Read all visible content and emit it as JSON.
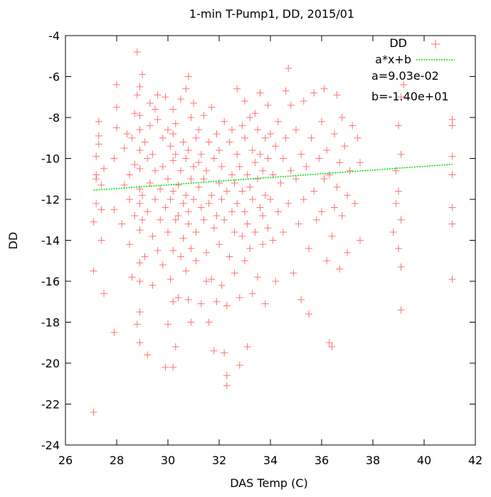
{
  "chart_data": {
    "type": "scatter",
    "title": "1-min T-Pump1, DD, 2015/01",
    "xlabel": "DAS Temp (C)",
    "ylabel": "DD",
    "xlim": [
      26,
      42
    ],
    "ylim": [
      -24,
      -4
    ],
    "xticks": [
      "26",
      "28",
      "30",
      "32",
      "34",
      "36",
      "38",
      "40",
      "42"
    ],
    "yticks": [
      "-24",
      "-22",
      "-20",
      "-18",
      "-16",
      "-14",
      "-12",
      "-10",
      "-8",
      "-6",
      "-4"
    ],
    "grid": false,
    "legend_position": "top-right",
    "series": [
      {
        "name": "DD",
        "marker": "plus",
        "color": "#ff0000",
        "points": [
          [
            27.1,
            -22.4
          ],
          [
            27.1,
            -15.5
          ],
          [
            27.1,
            -13.1
          ],
          [
            27.2,
            -12.2
          ],
          [
            27.2,
            -11.0
          ],
          [
            27.2,
            -10.8
          ],
          [
            27.2,
            -9.9
          ],
          [
            27.3,
            -9.3
          ],
          [
            27.3,
            -8.9
          ],
          [
            27.3,
            -8.2
          ],
          [
            27.4,
            -11.3
          ],
          [
            27.4,
            -12.5
          ],
          [
            27.4,
            -14.0
          ],
          [
            27.5,
            -16.6
          ],
          [
            27.5,
            -10.5
          ],
          [
            27.9,
            -18.5
          ],
          [
            27.9,
            -12.5
          ],
          [
            27.9,
            -10.0
          ],
          [
            28.0,
            -8.5
          ],
          [
            28.0,
            -7.5
          ],
          [
            28.0,
            -6.4
          ],
          [
            28.2,
            -13.2
          ],
          [
            28.3,
            -11.3
          ],
          [
            28.3,
            -9.5
          ],
          [
            28.4,
            -8.8
          ],
          [
            28.5,
            -10.8
          ],
          [
            28.5,
            -12.0
          ],
          [
            28.5,
            -14.2
          ],
          [
            28.6,
            -15.8
          ],
          [
            28.6,
            -9.0
          ],
          [
            28.7,
            -10.3
          ],
          [
            28.7,
            -12.8
          ],
          [
            28.7,
            -7.8
          ],
          [
            28.8,
            -18.1
          ],
          [
            28.8,
            -6.9
          ],
          [
            28.8,
            -4.8
          ],
          [
            28.9,
            -19.0
          ],
          [
            28.9,
            -17.5
          ],
          [
            28.9,
            -16.0
          ],
          [
            28.9,
            -15.1
          ],
          [
            28.9,
            -13.5
          ],
          [
            28.9,
            -12.2
          ],
          [
            28.9,
            -11.5
          ],
          [
            28.9,
            -10.5
          ],
          [
            28.9,
            -9.6
          ],
          [
            28.9,
            -8.6
          ],
          [
            28.9,
            -7.9
          ],
          [
            28.9,
            -6.5
          ],
          [
            29.0,
            -5.9
          ],
          [
            29.0,
            -11.8
          ],
          [
            29.0,
            -13.0
          ],
          [
            29.1,
            -14.8
          ],
          [
            29.1,
            -9.2
          ],
          [
            29.2,
            -10.0
          ],
          [
            29.2,
            -19.6
          ],
          [
            29.2,
            -12.6
          ],
          [
            29.3,
            -8.4
          ],
          [
            29.3,
            -11.2
          ],
          [
            29.3,
            -7.3
          ],
          [
            29.4,
            -13.8
          ],
          [
            29.4,
            -16.2
          ],
          [
            29.4,
            -9.8
          ],
          [
            29.5,
            -12.0
          ],
          [
            29.5,
            -10.6
          ],
          [
            29.5,
            -7.6
          ],
          [
            29.6,
            -8.1
          ],
          [
            29.6,
            -14.5
          ],
          [
            29.6,
            -6.9
          ],
          [
            29.7,
            -11.5
          ],
          [
            29.7,
            -13.0
          ],
          [
            29.8,
            -15.2
          ],
          [
            29.8,
            -9.0
          ],
          [
            29.8,
            -10.4
          ],
          [
            29.9,
            -12.4
          ],
          [
            29.9,
            -20.2
          ],
          [
            29.9,
            -7.0
          ],
          [
            30.0,
            -8.6
          ],
          [
            30.0,
            -11.0
          ],
          [
            30.0,
            -18.1
          ],
          [
            30.0,
            -13.6
          ],
          [
            30.1,
            -9.4
          ],
          [
            30.1,
            -15.9
          ],
          [
            30.1,
            -12.0
          ],
          [
            30.2,
            -20.2
          ],
          [
            30.2,
            -17.0
          ],
          [
            30.2,
            -14.5
          ],
          [
            30.2,
            -11.6
          ],
          [
            30.2,
            -10.1
          ],
          [
            30.2,
            -8.8
          ],
          [
            30.2,
            -7.6
          ],
          [
            30.3,
            -19.2
          ],
          [
            30.3,
            -13.0
          ],
          [
            30.3,
            -9.8
          ],
          [
            30.3,
            -8.3
          ],
          [
            30.4,
            -16.8
          ],
          [
            30.4,
            -11.3
          ],
          [
            30.4,
            -12.8
          ],
          [
            30.5,
            -10.6
          ],
          [
            30.5,
            -14.8
          ],
          [
            30.5,
            -7.1
          ],
          [
            30.6,
            -12.2
          ],
          [
            30.6,
            -9.2
          ],
          [
            30.6,
            -13.9
          ],
          [
            30.7,
            -11.8
          ],
          [
            30.7,
            -10.0
          ],
          [
            30.7,
            -15.5
          ],
          [
            30.7,
            -6.6
          ],
          [
            30.8,
            -16.9
          ],
          [
            30.8,
            -13.2
          ],
          [
            30.8,
            -9.6
          ],
          [
            30.8,
            -6.0
          ],
          [
            30.8,
            -12.6
          ],
          [
            30.9,
            -11.0
          ],
          [
            30.9,
            -14.4
          ],
          [
            30.9,
            -8.0
          ],
          [
            30.9,
            -18.0
          ],
          [
            31.0,
            -10.4
          ],
          [
            31.0,
            -12.0
          ],
          [
            31.0,
            -7.3
          ],
          [
            31.1,
            -13.6
          ],
          [
            31.1,
            -9.0
          ],
          [
            31.1,
            -15.0
          ],
          [
            31.2,
            -11.4
          ],
          [
            31.2,
            -10.2
          ],
          [
            31.2,
            -8.6
          ],
          [
            31.3,
            -12.4
          ],
          [
            31.3,
            -17.1
          ],
          [
            31.3,
            -9.8
          ],
          [
            31.4,
            -13.0
          ],
          [
            31.4,
            -11.0
          ],
          [
            31.4,
            -7.9
          ],
          [
            31.5,
            -14.6
          ],
          [
            31.5,
            -10.6
          ],
          [
            31.5,
            -16.0
          ],
          [
            31.6,
            -12.2
          ],
          [
            31.6,
            -9.2
          ],
          [
            31.6,
            -18.0
          ],
          [
            31.7,
            -11.8
          ],
          [
            31.7,
            -15.9
          ],
          [
            31.7,
            -7.5
          ],
          [
            31.8,
            -13.4
          ],
          [
            31.8,
            -10.0
          ],
          [
            31.8,
            -19.4
          ],
          [
            31.9,
            -12.8
          ],
          [
            31.9,
            -8.8
          ],
          [
            31.9,
            -17.0
          ],
          [
            32.0,
            -11.2
          ],
          [
            32.0,
            -14.2
          ],
          [
            32.0,
            -9.6
          ],
          [
            32.1,
            -16.2
          ],
          [
            32.1,
            -12.0
          ],
          [
            32.1,
            -10.4
          ],
          [
            32.2,
            -19.5
          ],
          [
            32.2,
            -13.0
          ],
          [
            32.2,
            -8.2
          ],
          [
            32.3,
            -21.1
          ],
          [
            32.3,
            -20.6
          ],
          [
            32.3,
            -17.2
          ],
          [
            32.3,
            -11.6
          ],
          [
            32.4,
            -9.2
          ],
          [
            32.4,
            -14.8
          ],
          [
            32.5,
            -12.6
          ],
          [
            32.5,
            -10.8
          ],
          [
            32.5,
            -8.6
          ],
          [
            32.6,
            -13.6
          ],
          [
            32.6,
            -11.2
          ],
          [
            32.6,
            -15.6
          ],
          [
            32.7,
            -9.8
          ],
          [
            32.7,
            -12.2
          ],
          [
            32.7,
            -6.6
          ],
          [
            32.8,
            -20.1
          ],
          [
            32.8,
            -16.8
          ],
          [
            32.8,
            -10.4
          ],
          [
            32.9,
            -13.8
          ],
          [
            32.9,
            -8.4
          ],
          [
            32.9,
            -11.6
          ],
          [
            33.0,
            -15.0
          ],
          [
            33.0,
            -9.0
          ],
          [
            33.0,
            -12.6
          ],
          [
            33.0,
            -7.2
          ],
          [
            33.1,
            -10.8
          ],
          [
            33.1,
            -19.2
          ],
          [
            33.1,
            -13.2
          ],
          [
            33.2,
            -11.4
          ],
          [
            33.2,
            -8.0
          ],
          [
            33.2,
            -14.4
          ],
          [
            33.3,
            -12.0
          ],
          [
            33.3,
            -9.6
          ],
          [
            33.3,
            -16.6
          ],
          [
            33.4,
            -10.2
          ],
          [
            33.4,
            -13.6
          ],
          [
            33.4,
            -7.8
          ],
          [
            33.5,
            -11.0
          ],
          [
            33.5,
            -15.8
          ],
          [
            33.5,
            -8.6
          ],
          [
            33.6,
            -12.4
          ],
          [
            33.6,
            -9.8
          ],
          [
            33.6,
            -6.8
          ],
          [
            33.7,
            -14.2
          ],
          [
            33.7,
            -10.6
          ],
          [
            33.7,
            -12.8
          ],
          [
            33.8,
            -9.0
          ],
          [
            33.8,
            -11.8
          ],
          [
            33.8,
            -17.1
          ],
          [
            33.9,
            -10.0
          ],
          [
            33.9,
            -13.4
          ],
          [
            33.9,
            -7.4
          ],
          [
            34.0,
            -12.0
          ],
          [
            34.0,
            -8.8
          ],
          [
            34.1,
            -10.8
          ],
          [
            34.1,
            -14.0
          ],
          [
            34.2,
            -9.4
          ],
          [
            34.2,
            -16.0
          ],
          [
            34.3,
            -12.6
          ],
          [
            34.3,
            -8.2
          ],
          [
            34.4,
            -11.2
          ],
          [
            34.5,
            -10.0
          ],
          [
            34.5,
            -13.6
          ],
          [
            34.6,
            -6.7
          ],
          [
            34.6,
            -9.0
          ],
          [
            34.7,
            -12.2
          ],
          [
            34.7,
            -5.6
          ],
          [
            34.8,
            -10.6
          ],
          [
            34.8,
            -7.4
          ],
          [
            34.9,
            -15.6
          ],
          [
            35.0,
            -11.0
          ],
          [
            35.0,
            -8.6
          ],
          [
            35.1,
            -13.2
          ],
          [
            35.2,
            -9.8
          ],
          [
            35.2,
            -16.9
          ],
          [
            35.3,
            -12.0
          ],
          [
            35.3,
            -7.2
          ],
          [
            35.4,
            -10.4
          ],
          [
            35.5,
            -14.4
          ],
          [
            35.5,
            -17.6
          ],
          [
            35.6,
            -9.0
          ],
          [
            35.7,
            -11.6
          ],
          [
            35.7,
            -6.8
          ],
          [
            35.8,
            -13.0
          ],
          [
            35.9,
            -10.0
          ],
          [
            36.0,
            -8.2
          ],
          [
            36.0,
            -12.6
          ],
          [
            36.1,
            -11.0
          ],
          [
            36.1,
            -6.6
          ],
          [
            36.2,
            -9.6
          ],
          [
            36.2,
            -15.0
          ],
          [
            36.3,
            -19.0
          ],
          [
            36.3,
            -10.8
          ],
          [
            36.4,
            -19.2
          ],
          [
            36.4,
            -13.8
          ],
          [
            36.5,
            -8.8
          ],
          [
            36.5,
            -12.4
          ],
          [
            36.6,
            -11.4
          ],
          [
            36.6,
            -6.9
          ],
          [
            36.7,
            -15.4
          ],
          [
            36.7,
            -10.2
          ],
          [
            36.8,
            -12.8
          ],
          [
            36.8,
            -8.0
          ],
          [
            36.9,
            -9.4
          ],
          [
            37.0,
            -11.8
          ],
          [
            37.0,
            -14.6
          ],
          [
            37.1,
            -10.6
          ],
          [
            37.2,
            -8.4
          ],
          [
            37.3,
            -12.2
          ],
          [
            37.4,
            -9.0
          ],
          [
            37.5,
            -14.0
          ],
          [
            37.5,
            -10.2
          ],
          [
            38.8,
            -13.6
          ],
          [
            38.9,
            -12.2
          ],
          [
            38.9,
            -10.6
          ],
          [
            39.0,
            -11.6
          ],
          [
            39.0,
            -14.4
          ],
          [
            39.0,
            -8.4
          ],
          [
            39.1,
            -17.4
          ],
          [
            39.1,
            -15.3
          ],
          [
            39.1,
            -13.0
          ],
          [
            39.1,
            -9.8
          ],
          [
            39.1,
            -7.0
          ],
          [
            39.2,
            -6.4
          ],
          [
            41.1,
            -15.9
          ],
          [
            41.1,
            -13.2
          ],
          [
            41.1,
            -12.4
          ],
          [
            41.1,
            -10.8
          ],
          [
            41.1,
            -9.9
          ],
          [
            41.1,
            -8.4
          ],
          [
            41.1,
            -8.1
          ]
        ]
      },
      {
        "name": "a*x+b",
        "marker": "line",
        "color": "#00dd00",
        "fit": {
          "a": 0.0903,
          "b": -14.0,
          "x_range": [
            27.1,
            41.1
          ]
        }
      }
    ],
    "annotations": [
      "a=9.03e-02",
      "b=-1.40e+01"
    ]
  }
}
